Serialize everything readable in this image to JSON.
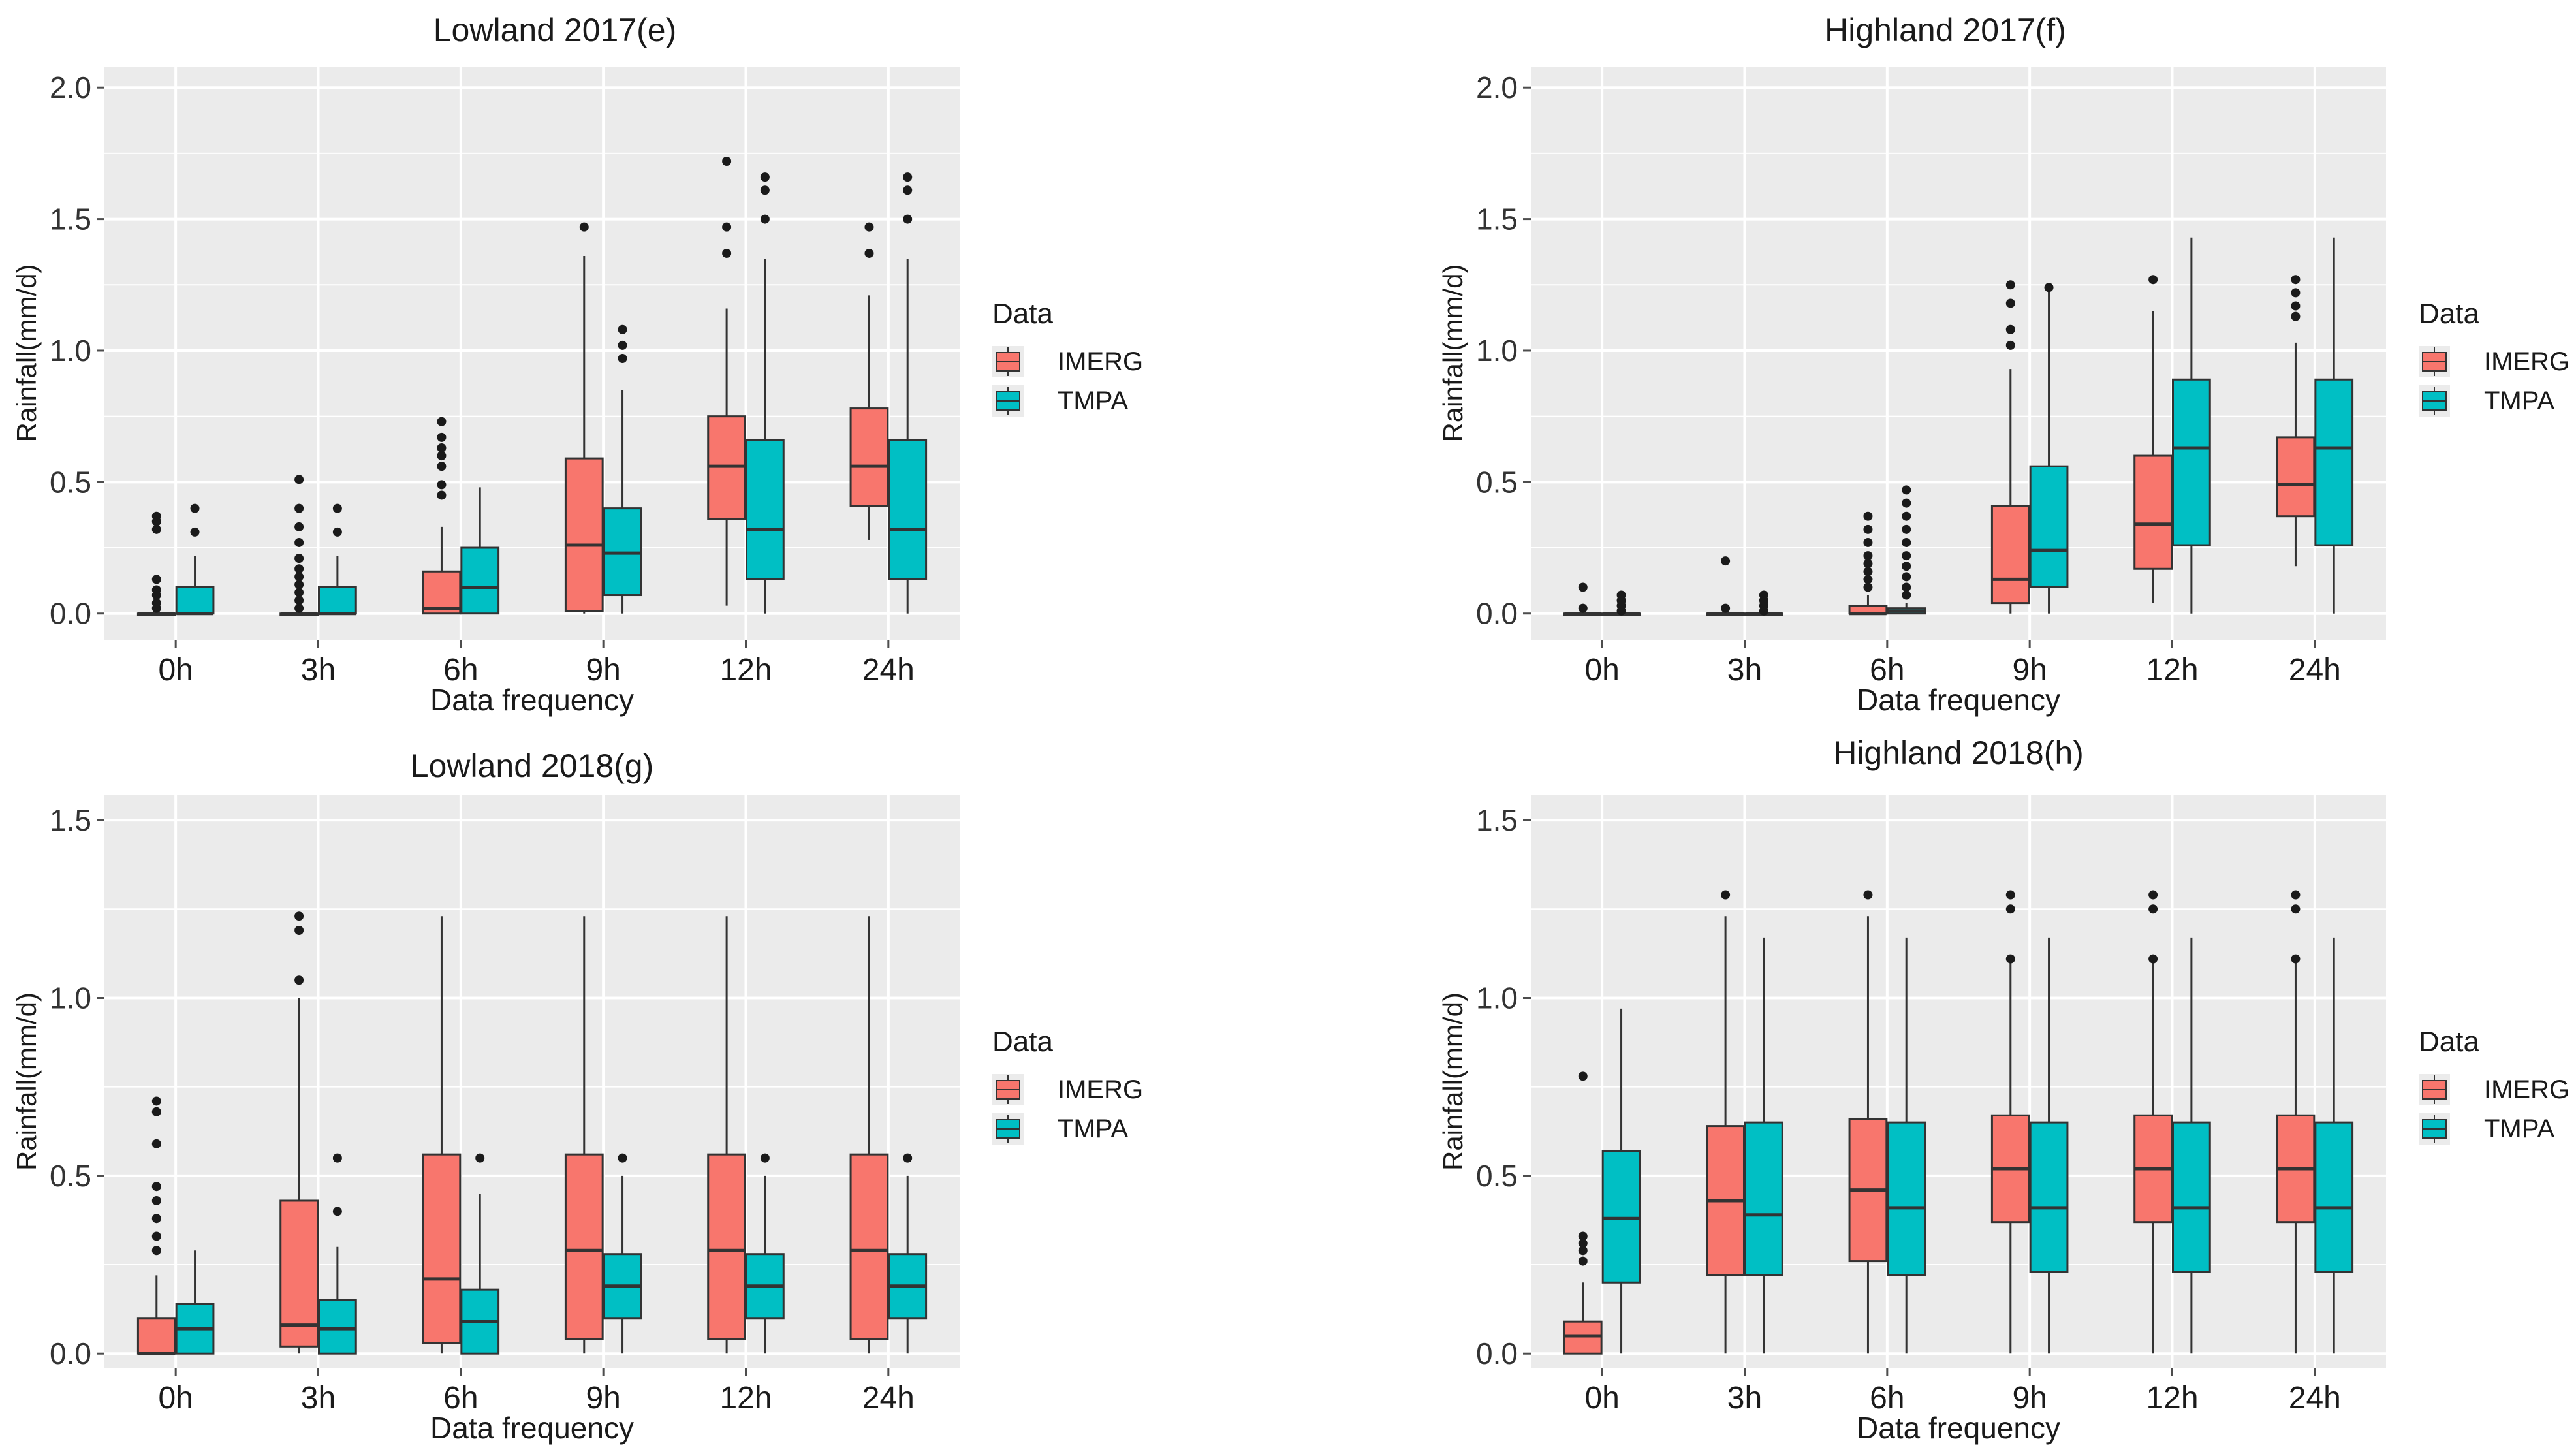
{
  "chart_data": [
    {
      "type": "boxplot",
      "title": "Lowland 2017(e)",
      "xlabel": "Data frequency",
      "ylabel": "Rainfall(mm/d)",
      "ylim": [
        -0.1,
        2.08
      ],
      "yticks": [
        "0.0",
        "0.5",
        "1.0",
        "1.5",
        "2.0"
      ],
      "ytick_values": [
        0,
        0.5,
        1.0,
        1.5,
        2.0
      ],
      "categories": [
        "0h",
        "3h",
        "6h",
        "9h",
        "12h",
        "24h"
      ],
      "legend_title": "Data",
      "series": [
        {
          "name": "IMERG",
          "color": "#F8766D",
          "boxes": [
            {
              "low": 0,
              "q1": 0,
              "median": 0,
              "q3": 0,
              "high": 0,
              "outliers": [
                0.02,
                0.04,
                0.07,
                0.09,
                0.13,
                0.32,
                0.35,
                0.37
              ]
            },
            {
              "low": 0,
              "q1": 0,
              "median": 0,
              "q3": 0,
              "high": 0,
              "outliers": [
                0.02,
                0.05,
                0.08,
                0.11,
                0.14,
                0.17,
                0.21,
                0.27,
                0.33,
                0.4,
                0.51
              ]
            },
            {
              "low": 0,
              "q1": 0,
              "median": 0.02,
              "q3": 0.16,
              "high": 0.33,
              "outliers": [
                0.45,
                0.49,
                0.56,
                0.6,
                0.63,
                0.67,
                0.73
              ]
            },
            {
              "low": 0,
              "q1": 0.01,
              "median": 0.26,
              "q3": 0.59,
              "high": 1.36,
              "outliers": [
                1.47
              ]
            },
            {
              "low": 0.03,
              "q1": 0.36,
              "median": 0.56,
              "q3": 0.75,
              "high": 1.16,
              "outliers": [
                1.37,
                1.47,
                1.72
              ]
            },
            {
              "low": 0.28,
              "q1": 0.41,
              "median": 0.56,
              "q3": 0.78,
              "high": 1.21,
              "outliers": [
                1.37,
                1.47
              ]
            }
          ]
        },
        {
          "name": "TMPA",
          "color": "#00BFC4",
          "boxes": [
            {
              "low": 0,
              "q1": 0,
              "median": 0,
              "q3": 0.1,
              "high": 0.22,
              "outliers": [
                0.31,
                0.4
              ]
            },
            {
              "low": 0,
              "q1": 0,
              "median": 0,
              "q3": 0.1,
              "high": 0.22,
              "outliers": [
                0.31,
                0.4
              ]
            },
            {
              "low": 0,
              "q1": 0,
              "median": 0.1,
              "q3": 0.25,
              "high": 0.48,
              "outliers": []
            },
            {
              "low": 0,
              "q1": 0.07,
              "median": 0.23,
              "q3": 0.4,
              "high": 0.85,
              "outliers": [
                0.97,
                1.02,
                1.08
              ]
            },
            {
              "low": 0,
              "q1": 0.13,
              "median": 0.32,
              "q3": 0.66,
              "high": 1.35,
              "outliers": [
                1.5,
                1.61,
                1.66
              ]
            },
            {
              "low": 0,
              "q1": 0.13,
              "median": 0.32,
              "q3": 0.66,
              "high": 1.35,
              "outliers": [
                1.5,
                1.61,
                1.66
              ]
            }
          ]
        }
      ]
    },
    {
      "type": "boxplot",
      "title": "Highland 2017(f)",
      "xlabel": "Data frequency",
      "ylabel": "Rainfall(mm/d)",
      "ylim": [
        -0.1,
        2.08
      ],
      "yticks": [
        "0.0",
        "0.5",
        "1.0",
        "1.5",
        "2.0"
      ],
      "ytick_values": [
        0,
        0.5,
        1.0,
        1.5,
        2.0
      ],
      "categories": [
        "0h",
        "3h",
        "6h",
        "9h",
        "12h",
        "24h"
      ],
      "legend_title": "Data",
      "series": [
        {
          "name": "IMERG",
          "color": "#F8766D",
          "boxes": [
            {
              "low": 0,
              "q1": 0,
              "median": 0,
              "q3": 0,
              "high": 0,
              "outliers": [
                0.02,
                0.1
              ]
            },
            {
              "low": 0,
              "q1": 0,
              "median": 0,
              "q3": 0,
              "high": 0,
              "outliers": [
                0.02,
                0.2
              ]
            },
            {
              "low": 0,
              "q1": 0,
              "median": 0,
              "q3": 0.03,
              "high": 0.07,
              "outliers": [
                0.1,
                0.13,
                0.16,
                0.19,
                0.22,
                0.27,
                0.32,
                0.37
              ]
            },
            {
              "low": 0,
              "q1": 0.04,
              "median": 0.13,
              "q3": 0.41,
              "high": 0.93,
              "outliers": [
                1.02,
                1.08,
                1.18,
                1.25
              ]
            },
            {
              "low": 0.04,
              "q1": 0.17,
              "median": 0.34,
              "q3": 0.6,
              "high": 1.15,
              "outliers": [
                1.27
              ]
            },
            {
              "low": 0.18,
              "q1": 0.37,
              "median": 0.49,
              "q3": 0.67,
              "high": 1.03,
              "outliers": [
                1.13,
                1.17,
                1.22,
                1.27
              ]
            }
          ]
        },
        {
          "name": "TMPA",
          "color": "#00BFC4",
          "boxes": [
            {
              "low": 0,
              "q1": 0,
              "median": 0,
              "q3": 0,
              "high": 0,
              "outliers": [
                0.01,
                0.03,
                0.05,
                0.07
              ]
            },
            {
              "low": 0,
              "q1": 0,
              "median": 0,
              "q3": 0,
              "high": 0,
              "outliers": [
                0.01,
                0.03,
                0.05,
                0.07
              ]
            },
            {
              "low": 0,
              "q1": 0,
              "median": 0.01,
              "q3": 0.02,
              "high": 0.04,
              "outliers": [
                0.07,
                0.1,
                0.14,
                0.18,
                0.22,
                0.27,
                0.32,
                0.37,
                0.42,
                0.47
              ]
            },
            {
              "low": 0,
              "q1": 0.1,
              "median": 0.24,
              "q3": 0.56,
              "high": 1.24,
              "outliers": [
                1.24
              ]
            },
            {
              "low": 0,
              "q1": 0.26,
              "median": 0.63,
              "q3": 0.89,
              "high": 1.43,
              "outliers": []
            },
            {
              "low": 0,
              "q1": 0.26,
              "median": 0.63,
              "q3": 0.89,
              "high": 1.43,
              "outliers": []
            }
          ]
        }
      ]
    },
    {
      "type": "boxplot",
      "title": "Lowland 2018(g)",
      "xlabel": "Data frequency",
      "ylabel": "Rainfall(mm/d)",
      "ylim": [
        -0.04,
        1.57
      ],
      "yticks": [
        "0.0",
        "0.5",
        "1.0",
        "1.5"
      ],
      "ytick_values": [
        0,
        0.5,
        1.0,
        1.5
      ],
      "categories": [
        "0h",
        "3h",
        "6h",
        "9h",
        "12h",
        "24h"
      ],
      "legend_title": "Data",
      "series": [
        {
          "name": "IMERG",
          "color": "#F8766D",
          "boxes": [
            {
              "low": 0,
              "q1": 0,
              "median": 0,
              "q3": 0.1,
              "high": 0.22,
              "outliers": [
                0.29,
                0.33,
                0.38,
                0.43,
                0.47,
                0.59,
                0.68,
                0.71
              ]
            },
            {
              "low": 0,
              "q1": 0.02,
              "median": 0.08,
              "q3": 0.43,
              "high": 1.0,
              "outliers": [
                1.05,
                1.19,
                1.23
              ]
            },
            {
              "low": 0,
              "q1": 0.03,
              "median": 0.21,
              "q3": 0.56,
              "high": 1.23,
              "outliers": []
            },
            {
              "low": 0,
              "q1": 0.04,
              "median": 0.29,
              "q3": 0.56,
              "high": 1.23,
              "outliers": []
            },
            {
              "low": 0,
              "q1": 0.04,
              "median": 0.29,
              "q3": 0.56,
              "high": 1.23,
              "outliers": []
            },
            {
              "low": 0,
              "q1": 0.04,
              "median": 0.29,
              "q3": 0.56,
              "high": 1.23,
              "outliers": []
            }
          ]
        },
        {
          "name": "TMPA",
          "color": "#00BFC4",
          "boxes": [
            {
              "low": 0,
              "q1": 0,
              "median": 0.07,
              "q3": 0.14,
              "high": 0.29,
              "outliers": []
            },
            {
              "low": 0,
              "q1": 0,
              "median": 0.07,
              "q3": 0.15,
              "high": 0.3,
              "outliers": [
                0.4,
                0.55
              ]
            },
            {
              "low": 0,
              "q1": 0,
              "median": 0.09,
              "q3": 0.18,
              "high": 0.45,
              "outliers": [
                0.55
              ]
            },
            {
              "low": 0,
              "q1": 0.1,
              "median": 0.19,
              "q3": 0.28,
              "high": 0.5,
              "outliers": [
                0.55
              ]
            },
            {
              "low": 0,
              "q1": 0.1,
              "median": 0.19,
              "q3": 0.28,
              "high": 0.5,
              "outliers": [
                0.55
              ]
            },
            {
              "low": 0,
              "q1": 0.1,
              "median": 0.19,
              "q3": 0.28,
              "high": 0.5,
              "outliers": [
                0.55
              ]
            }
          ]
        }
      ]
    },
    {
      "type": "boxplot",
      "title": "Highland 2018(h)",
      "xlabel": "Data frequency",
      "ylabel": "Rainfall(mm/d)",
      "ylim": [
        -0.04,
        1.57
      ],
      "yticks": [
        "0.0",
        "0.5",
        "1.0",
        "1.5"
      ],
      "ytick_values": [
        0,
        0.5,
        1.0,
        1.5
      ],
      "categories": [
        "0h",
        "3h",
        "6h",
        "9h",
        "12h",
        "24h"
      ],
      "legend_title": "Data",
      "series": [
        {
          "name": "IMERG",
          "color": "#F8766D",
          "boxes": [
            {
              "low": 0,
              "q1": 0,
              "median": 0.05,
              "q3": 0.09,
              "high": 0.2,
              "outliers": [
                0.26,
                0.29,
                0.31,
                0.33,
                0.78
              ]
            },
            {
              "low": 0,
              "q1": 0.22,
              "median": 0.43,
              "q3": 0.64,
              "high": 1.23,
              "outliers": [
                1.29
              ]
            },
            {
              "low": 0,
              "q1": 0.26,
              "median": 0.46,
              "q3": 0.66,
              "high": 1.23,
              "outliers": [
                1.29
              ]
            },
            {
              "low": 0,
              "q1": 0.37,
              "median": 0.52,
              "q3": 0.67,
              "high": 1.1,
              "outliers": [
                1.11,
                1.25,
                1.29
              ]
            },
            {
              "low": 0,
              "q1": 0.37,
              "median": 0.52,
              "q3": 0.67,
              "high": 1.1,
              "outliers": [
                1.11,
                1.25,
                1.29
              ]
            },
            {
              "low": 0,
              "q1": 0.37,
              "median": 0.52,
              "q3": 0.67,
              "high": 1.1,
              "outliers": [
                1.11,
                1.25,
                1.29
              ]
            }
          ]
        },
        {
          "name": "TMPA",
          "color": "#00BFC4",
          "boxes": [
            {
              "low": 0,
              "q1": 0.2,
              "median": 0.38,
              "q3": 0.57,
              "high": 0.97,
              "outliers": []
            },
            {
              "low": 0,
              "q1": 0.22,
              "median": 0.39,
              "q3": 0.65,
              "high": 1.17,
              "outliers": []
            },
            {
              "low": 0,
              "q1": 0.22,
              "median": 0.41,
              "q3": 0.65,
              "high": 1.17,
              "outliers": []
            },
            {
              "low": 0,
              "q1": 0.23,
              "median": 0.41,
              "q3": 0.65,
              "high": 1.17,
              "outliers": []
            },
            {
              "low": 0,
              "q1": 0.23,
              "median": 0.41,
              "q3": 0.65,
              "high": 1.17,
              "outliers": []
            },
            {
              "low": 0,
              "q1": 0.23,
              "median": 0.41,
              "q3": 0.65,
              "high": 1.17,
              "outliers": []
            }
          ]
        }
      ]
    }
  ]
}
